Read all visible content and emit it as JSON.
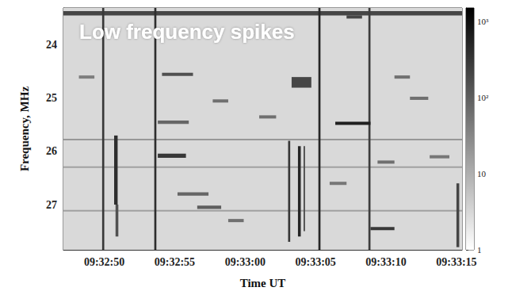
{
  "chart_data": {
    "type": "heatmap",
    "title": "Low frequency spikes",
    "x_label": "Time UT",
    "y_label": "Frequency, MHz",
    "xlim": [
      47.1,
      75.4
    ],
    "xticks": [
      {
        "value": 50,
        "label": "09:32:50"
      },
      {
        "value": 55,
        "label": "09:32:55"
      },
      {
        "value": 60,
        "label": "09:33:00"
      },
      {
        "value": 65,
        "label": "09:33:05"
      },
      {
        "value": 70,
        "label": "09:33:10"
      },
      {
        "value": 75,
        "label": "09:33:15"
      }
    ],
    "ylim": [
      23.3,
      27.85
    ],
    "yticks": [
      24,
      25,
      26,
      27
    ],
    "background_value": 3,
    "cells": [
      [
        47.1,
        75.4,
        23.36,
        23.44,
        200
      ],
      [
        47.1,
        75.4,
        25.76,
        25.79,
        20
      ],
      [
        47.1,
        75.4,
        26.28,
        26.31,
        15
      ],
      [
        47.1,
        75.4,
        27.1,
        27.13,
        15
      ],
      [
        49.85,
        50.0,
        23.3,
        27.85,
        300
      ],
      [
        53.55,
        53.7,
        23.3,
        27.85,
        400
      ],
      [
        65.2,
        65.35,
        23.3,
        27.85,
        500
      ],
      [
        68.75,
        68.9,
        23.3,
        27.85,
        250
      ],
      [
        50.7,
        50.95,
        25.7,
        27.0,
        400
      ],
      [
        50.8,
        51.0,
        27.0,
        27.6,
        150
      ],
      [
        63.05,
        63.2,
        25.8,
        27.7,
        300
      ],
      [
        63.75,
        63.95,
        25.9,
        27.6,
        500
      ],
      [
        64.15,
        64.25,
        25.9,
        27.5,
        200
      ],
      [
        75.0,
        75.2,
        26.6,
        27.8,
        200
      ],
      [
        66.4,
        68.9,
        25.44,
        25.5,
        600
      ],
      [
        54.1,
        56.3,
        24.52,
        24.58,
        150
      ],
      [
        53.8,
        55.8,
        26.04,
        26.12,
        300
      ],
      [
        53.8,
        56.0,
        25.42,
        25.48,
        80
      ],
      [
        63.3,
        64.7,
        24.6,
        24.8,
        200
      ],
      [
        68.9,
        70.6,
        27.42,
        27.48,
        300
      ],
      [
        56.6,
        58.3,
        27.02,
        27.08,
        100
      ],
      [
        55.2,
        57.4,
        26.77,
        26.83,
        80
      ],
      [
        67.2,
        68.3,
        23.44,
        23.5,
        200
      ],
      [
        61.0,
        62.2,
        25.32,
        25.38,
        60
      ],
      [
        70.6,
        71.7,
        24.57,
        24.63,
        60
      ],
      [
        71.7,
        73.0,
        24.97,
        25.03,
        60
      ],
      [
        48.2,
        49.3,
        24.57,
        24.63,
        40
      ],
      [
        57.7,
        58.8,
        25.02,
        25.08,
        60
      ],
      [
        73.1,
        74.5,
        26.07,
        26.13,
        50
      ],
      [
        58.8,
        59.9,
        27.27,
        27.33,
        60
      ],
      [
        66.0,
        67.2,
        26.57,
        26.63,
        50
      ],
      [
        69.4,
        70.6,
        26.17,
        26.23,
        60
      ]
    ],
    "colorbar_range": [
      1,
      1500
    ],
    "colorbar_ticks": [
      1,
      10,
      {
        "value": 100,
        "label": "10²"
      },
      {
        "value": 1000,
        "label": "10³"
      }
    ]
  }
}
